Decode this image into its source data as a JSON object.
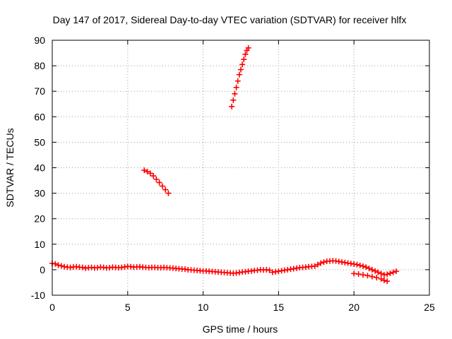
{
  "chart_data": {
    "type": "scatter",
    "title": "Day 147 of 2017, Sidereal Day-to-day VTEC variation (SDTVAR) for receiver hlfx",
    "xlabel": "GPS time / hours",
    "ylabel": "SDTVAR / TECUs",
    "xlim": [
      0,
      25
    ],
    "ylim": [
      -10,
      90
    ],
    "xticks": [
      "0",
      "5",
      "10",
      "15",
      "20",
      "25"
    ],
    "yticks": [
      "-10",
      "0",
      "10",
      "20",
      "30",
      "40",
      "50",
      "60",
      "70",
      "80",
      "90"
    ],
    "grid": true,
    "marker": "plus",
    "color": "#ff0000",
    "series": [
      {
        "points": [
          [
            0.0,
            2.5
          ],
          [
            0.2,
            2.3
          ],
          [
            0.4,
            1.8
          ],
          [
            0.6,
            1.5
          ],
          [
            0.8,
            1.2
          ],
          [
            1.0,
            1.0
          ],
          [
            1.2,
            0.9
          ],
          [
            1.4,
            1.1
          ],
          [
            1.6,
            1.2
          ],
          [
            1.8,
            1.0
          ],
          [
            2.0,
            0.9
          ],
          [
            2.2,
            0.6
          ],
          [
            2.4,
            0.8
          ],
          [
            2.6,
            0.9
          ],
          [
            2.8,
            0.7
          ],
          [
            3.0,
            0.8
          ],
          [
            3.2,
            1.0
          ],
          [
            3.4,
            0.9
          ],
          [
            3.6,
            0.7
          ],
          [
            3.8,
            0.8
          ],
          [
            4.0,
            1.0
          ],
          [
            4.2,
            0.9
          ],
          [
            4.4,
            0.8
          ],
          [
            4.6,
            0.9
          ],
          [
            4.8,
            1.1
          ],
          [
            5.0,
            1.3
          ],
          [
            5.2,
            1.2
          ],
          [
            5.4,
            1.0
          ],
          [
            5.6,
            1.1
          ],
          [
            5.8,
            1.2
          ],
          [
            6.0,
            1.0
          ],
          [
            6.2,
            0.9
          ],
          [
            6.4,
            0.8
          ],
          [
            6.6,
            0.9
          ],
          [
            6.8,
            0.9
          ],
          [
            7.0,
            0.8
          ],
          [
            7.2,
            0.8
          ],
          [
            7.4,
            0.9
          ],
          [
            7.6,
            0.8
          ],
          [
            7.8,
            0.7
          ],
          [
            8.0,
            0.6
          ],
          [
            8.2,
            0.5
          ],
          [
            8.4,
            0.4
          ],
          [
            8.6,
            0.3
          ],
          [
            8.8,
            0.2
          ],
          [
            9.0,
            0.0
          ],
          [
            9.2,
            -0.1
          ],
          [
            9.4,
            -0.2
          ],
          [
            9.6,
            -0.3
          ],
          [
            9.8,
            -0.4
          ],
          [
            10.0,
            -0.5
          ],
          [
            10.2,
            -0.5
          ],
          [
            10.4,
            -0.6
          ],
          [
            10.6,
            -0.7
          ],
          [
            10.8,
            -0.8
          ],
          [
            11.0,
            -0.9
          ],
          [
            11.2,
            -1.0
          ],
          [
            11.4,
            -1.1
          ],
          [
            11.6,
            -1.2
          ],
          [
            11.8,
            -1.3
          ],
          [
            12.0,
            -1.4
          ],
          [
            12.2,
            -1.3
          ],
          [
            12.4,
            -1.1
          ],
          [
            12.6,
            -0.9
          ],
          [
            12.8,
            -0.8
          ],
          [
            13.0,
            -0.6
          ],
          [
            13.2,
            -0.5
          ],
          [
            13.4,
            -0.3
          ],
          [
            13.6,
            -0.2
          ],
          [
            13.8,
            0.0
          ],
          [
            14.0,
            -0.1
          ],
          [
            14.2,
            0.0
          ],
          [
            14.4,
            -0.2
          ]
        ]
      },
      {
        "points": [
          [
            14.6,
            -1.0
          ],
          [
            14.8,
            -0.8
          ],
          [
            15.0,
            -0.6
          ],
          [
            15.2,
            -0.4
          ],
          [
            15.4,
            -0.2
          ],
          [
            15.6,
            0.0
          ],
          [
            15.8,
            0.2
          ],
          [
            16.0,
            0.4
          ],
          [
            16.2,
            0.6
          ],
          [
            16.4,
            0.8
          ],
          [
            16.6,
            0.9
          ],
          [
            16.8,
            1.0
          ],
          [
            17.0,
            1.2
          ],
          [
            17.2,
            1.3
          ],
          [
            17.4,
            1.4
          ],
          [
            17.6,
            2.0
          ],
          [
            17.8,
            2.6
          ],
          [
            18.0,
            3.0
          ],
          [
            18.2,
            3.3
          ],
          [
            18.4,
            3.4
          ],
          [
            18.6,
            3.5
          ],
          [
            18.8,
            3.4
          ],
          [
            19.0,
            3.2
          ],
          [
            19.2,
            3.0
          ],
          [
            19.4,
            2.8
          ],
          [
            19.6,
            2.6
          ],
          [
            19.8,
            2.4
          ],
          [
            20.0,
            2.2
          ],
          [
            20.2,
            2.0
          ],
          [
            20.4,
            1.7
          ],
          [
            20.6,
            1.4
          ],
          [
            20.8,
            1.0
          ],
          [
            21.0,
            0.5
          ],
          [
            21.2,
            0.0
          ],
          [
            21.4,
            -0.5
          ],
          [
            21.6,
            -1.0
          ],
          [
            21.8,
            -1.5
          ],
          [
            22.0,
            -2.0
          ],
          [
            22.2,
            -1.8
          ],
          [
            22.4,
            -1.4
          ],
          [
            22.6,
            -1.0
          ],
          [
            22.8,
            -0.6
          ]
        ]
      },
      {
        "points": [
          [
            20.0,
            -1.5
          ],
          [
            20.3,
            -1.7
          ],
          [
            20.6,
            -2.0
          ],
          [
            20.9,
            -2.3
          ],
          [
            21.2,
            -2.7
          ],
          [
            21.5,
            -3.1
          ],
          [
            21.8,
            -3.6
          ],
          [
            22.0,
            -4.2
          ],
          [
            22.2,
            -4.5
          ]
        ]
      },
      {
        "points": [
          [
            6.1,
            39.0
          ],
          [
            6.3,
            38.5
          ],
          [
            6.5,
            37.8
          ],
          [
            6.7,
            36.8
          ],
          [
            6.9,
            35.5
          ],
          [
            7.1,
            34.2
          ],
          [
            7.3,
            32.8
          ],
          [
            7.5,
            31.4
          ],
          [
            7.7,
            30.0
          ]
        ]
      },
      {
        "points": [
          [
            11.9,
            64.0
          ],
          [
            12.0,
            66.5
          ],
          [
            12.1,
            69.0
          ],
          [
            12.2,
            71.5
          ],
          [
            12.3,
            74.0
          ],
          [
            12.4,
            76.5
          ],
          [
            12.5,
            78.5
          ],
          [
            12.6,
            80.5
          ],
          [
            12.7,
            82.5
          ],
          [
            12.8,
            84.5
          ],
          [
            12.9,
            86.0
          ],
          [
            13.0,
            87.0
          ]
        ]
      }
    ]
  }
}
